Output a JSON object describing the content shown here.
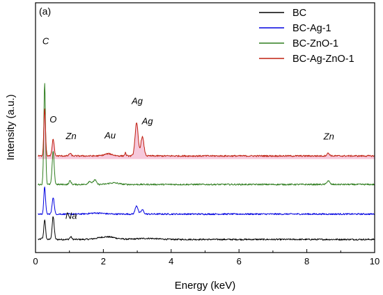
{
  "chart_data": {
    "type": "line",
    "panel_label": "(a)",
    "title": "",
    "xlabel": "Energy (keV)",
    "ylabel": "Intensity (a.u.)",
    "xlim": [
      0,
      10
    ],
    "xticks": [
      "0",
      "2",
      "4",
      "6",
      "8",
      "10"
    ],
    "yticks_shown": false,
    "grid": false,
    "legend_position": "top-right",
    "series": [
      {
        "name": "BC",
        "color": "#000000",
        "offset": 0,
        "baseline": 0.09,
        "peaks": [
          {
            "x": 0.18,
            "h": 0.02,
            "w": 0.02
          },
          {
            "x": 0.27,
            "h": 0.38,
            "w": 0.025
          },
          {
            "x": 0.52,
            "h": 0.43,
            "w": 0.03
          },
          {
            "x": 1.04,
            "h": 0.05,
            "w": 0.03
          },
          {
            "x": 2.1,
            "h": 0.05,
            "w": 0.25
          },
          {
            "x": 3.3,
            "h": 0.02,
            "w": 0.3
          }
        ]
      },
      {
        "name": "BC-Ag-1",
        "color": "#0000e0",
        "offset": 0.48,
        "baseline": 0.09,
        "peaks": [
          {
            "x": 0.27,
            "h": 0.52,
            "w": 0.025
          },
          {
            "x": 0.52,
            "h": 0.32,
            "w": 0.03
          },
          {
            "x": 2.98,
            "h": 0.16,
            "w": 0.04
          },
          {
            "x": 3.15,
            "h": 0.08,
            "w": 0.04
          },
          {
            "x": 1.8,
            "h": 0.02,
            "w": 0.2
          }
        ]
      },
      {
        "name": "BC-ZnO-1",
        "color": "#2e7d1e",
        "offset": 1.04,
        "baseline": 0.09,
        "peaks": [
          {
            "x": 0.27,
            "h": 1.93,
            "w": 0.025
          },
          {
            "x": 0.52,
            "h": 0.62,
            "w": 0.03
          },
          {
            "x": 1.02,
            "h": 0.07,
            "w": 0.03
          },
          {
            "x": 1.6,
            "h": 0.06,
            "w": 0.05
          },
          {
            "x": 1.75,
            "h": 0.09,
            "w": 0.04
          },
          {
            "x": 2.3,
            "h": 0.03,
            "w": 0.15
          },
          {
            "x": 8.63,
            "h": 0.07,
            "w": 0.04
          }
        ]
      },
      {
        "name": "BC-Ag-ZnO-1",
        "color": "#c02010",
        "fill": "#f3b6cf",
        "offset": 1.58,
        "baseline": 0.09,
        "peaks": [
          {
            "x": 0.27,
            "h": 0.9,
            "w": 0.025
          },
          {
            "x": 0.52,
            "h": 0.32,
            "w": 0.03
          },
          {
            "x": 1.02,
            "h": 0.05,
            "w": 0.03
          },
          {
            "x": 2.15,
            "h": 0.04,
            "w": 0.12
          },
          {
            "x": 2.65,
            "h": 0.06,
            "w": 0.02
          },
          {
            "x": 2.98,
            "h": 0.62,
            "w": 0.045
          },
          {
            "x": 3.15,
            "h": 0.36,
            "w": 0.045
          },
          {
            "x": 8.63,
            "h": 0.05,
            "w": 0.04
          }
        ]
      }
    ],
    "annotations": [
      {
        "text": "C",
        "x": 0.3,
        "y": 3.78
      },
      {
        "text": "O",
        "x": 0.52,
        "y": 2.3
      },
      {
        "text": "Zn",
        "x": 1.05,
        "y": 1.99
      },
      {
        "text": "Au",
        "x": 2.2,
        "y": 2.0
      },
      {
        "text": "Ag",
        "x": 3.0,
        "y": 2.65
      },
      {
        "text": "Ag",
        "x": 3.3,
        "y": 2.27
      },
      {
        "text": "Zn",
        "x": 8.65,
        "y": 1.98
      },
      {
        "text": "Na",
        "x": 1.05,
        "y": 0.48
      }
    ]
  }
}
